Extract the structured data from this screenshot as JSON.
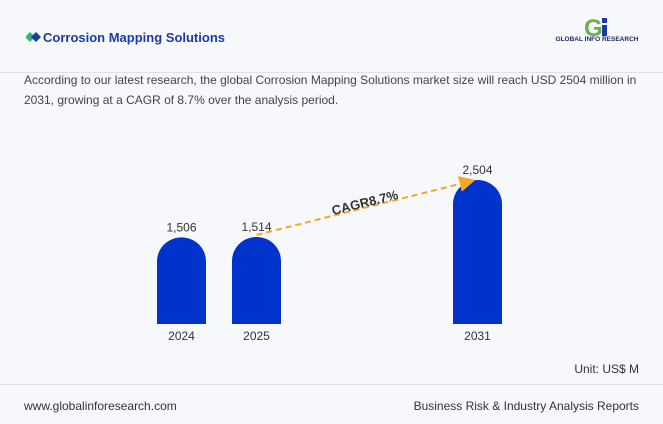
{
  "header": {
    "title": "Corrosion Mapping Solutions",
    "logo_text": "GLOBAL INFO RESEARCH"
  },
  "description": "According to our latest research, the global Corrosion Mapping Solutions market size will reach USD 2504 million in 2031, growing at a CAGR of 8.7% over the analysis period.",
  "footer": {
    "url": "www.globalinforesearch.com",
    "tagline": "Business Risk & Industry Analysis Reports"
  },
  "chart_data": {
    "type": "bar",
    "categories": [
      "2024",
      "2025",
      "2031"
    ],
    "values": [
      1506,
      1514,
      2504
    ],
    "value_labels": [
      "1,506",
      "1,514",
      "2,504"
    ],
    "annotation": "CAGR8.7%",
    "unit": "Unit: US$ M",
    "bar_color": "#0033cc",
    "arrow_color": "#f5a623",
    "grid": false
  }
}
